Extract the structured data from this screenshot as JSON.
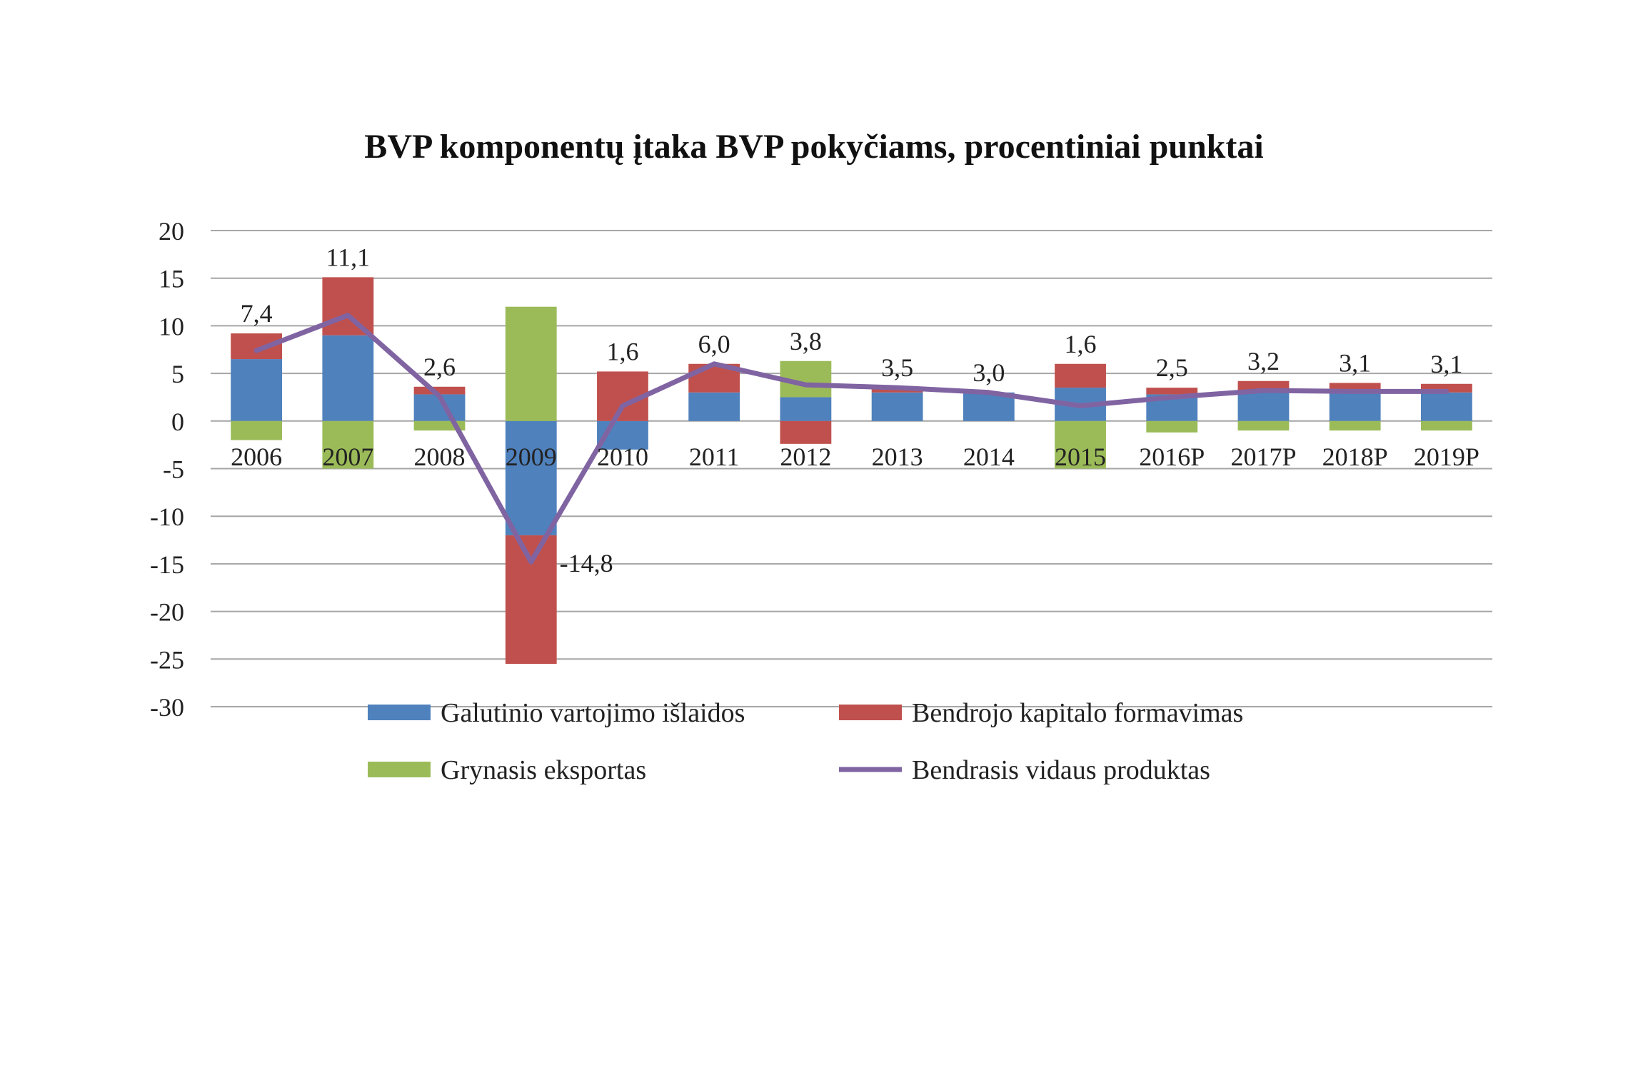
{
  "chart_data": {
    "type": "bar",
    "title": "BVP komponentų įtaka BVP pokyčiams, procentiniai punktai",
    "categories": [
      "2006",
      "2007",
      "2008",
      "2009",
      "2010",
      "2011",
      "2012",
      "2013",
      "2014",
      "2015",
      "2016P",
      "2017P",
      "2018P",
      "2019P"
    ],
    "ylim": [
      -30,
      20
    ],
    "yticks": [
      20,
      15,
      10,
      5,
      0,
      -5,
      -10,
      -15,
      -20,
      -25,
      -30
    ],
    "ytick_labels": [
      "20",
      "15",
      "10",
      "5",
      "0",
      "-5",
      "-10",
      "-15",
      "-20",
      "-25",
      "-30"
    ],
    "grid": true,
    "stacked": true,
    "legend_position": "bottom",
    "series": [
      {
        "name": "Galutinio vartojimo išlaidos",
        "kind": "bar",
        "color": "#4f81bd",
        "values": [
          6.5,
          9.0,
          2.8,
          -12.0,
          -3.0,
          3.0,
          2.5,
          3.0,
          3.0,
          3.5,
          2.8,
          3.2,
          3.1,
          3.0
        ]
      },
      {
        "name": "Bendrojo kapitalo formavimas",
        "kind": "bar",
        "color": "#c0504d",
        "values": [
          2.7,
          6.1,
          0.8,
          -13.5,
          5.2,
          3.0,
          -2.4,
          0.5,
          0.0,
          2.5,
          0.7,
          1.0,
          0.9,
          0.9
        ]
      },
      {
        "name": "Grynasis eksportas",
        "kind": "bar",
        "color": "#9bbb59",
        "values": [
          -2.0,
          -5.0,
          -1.0,
          12.0,
          0.0,
          0.0,
          3.8,
          0.0,
          0.0,
          -5.0,
          -1.2,
          -1.0,
          -1.0,
          -1.0
        ]
      },
      {
        "name": "Bendrasis vidaus produktas",
        "kind": "line",
        "color": "#8064a2",
        "values": [
          7.4,
          11.1,
          2.6,
          -14.8,
          1.6,
          6.0,
          3.8,
          3.5,
          3.0,
          1.6,
          2.5,
          3.2,
          3.1,
          3.1
        ]
      }
    ],
    "data_labels": [
      "7,4",
      "11,1",
      "2,6",
      "-14,8",
      "1,6",
      "6,0",
      "3,8",
      "3,5",
      "3,0",
      "1,6",
      "2,5",
      "3,2",
      "3,1",
      "3,1"
    ]
  }
}
